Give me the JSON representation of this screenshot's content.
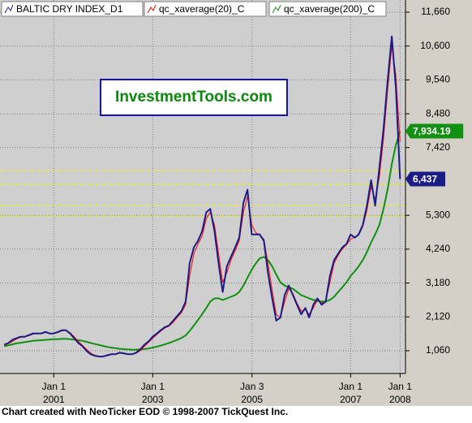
{
  "chart_data": {
    "type": "line",
    "legend": [
      "BALTIC DRY INDEX_D1",
      "qc_xaverage(20)_C",
      "qc_xaverage(200)_C"
    ],
    "watermark": "InvestmentTools.com",
    "footer": "Chart created with NeoTicker EOD © 1998-2007 TickQuest Inc.",
    "x": [
      "2000-01",
      "2000-02",
      "2000-03",
      "2000-04",
      "2000-05",
      "2000-06",
      "2000-07",
      "2000-08",
      "2000-09",
      "2000-10",
      "2000-11",
      "2000-12",
      "2001-01",
      "2001-02",
      "2001-03",
      "2001-04",
      "2001-05",
      "2001-06",
      "2001-07",
      "2001-08",
      "2001-09",
      "2001-10",
      "2001-11",
      "2001-12",
      "2002-01",
      "2002-02",
      "2002-03",
      "2002-04",
      "2002-05",
      "2002-06",
      "2002-07",
      "2002-08",
      "2002-09",
      "2002-10",
      "2002-11",
      "2002-12",
      "2003-01",
      "2003-02",
      "2003-03",
      "2003-04",
      "2003-05",
      "2003-06",
      "2003-07",
      "2003-08",
      "2003-09",
      "2003-10",
      "2003-11",
      "2003-12",
      "2004-01",
      "2004-02",
      "2004-03",
      "2004-04",
      "2004-05",
      "2004-06",
      "2004-07",
      "2004-08",
      "2004-09",
      "2004-10",
      "2004-11",
      "2004-12",
      "2005-01",
      "2005-02",
      "2005-03",
      "2005-04",
      "2005-05",
      "2005-06",
      "2005-07",
      "2005-08",
      "2005-09",
      "2005-10",
      "2005-11",
      "2005-12",
      "2006-01",
      "2006-02",
      "2006-03",
      "2006-04",
      "2006-05",
      "2006-06",
      "2006-07",
      "2006-08",
      "2006-09",
      "2006-10",
      "2006-11",
      "2006-12",
      "2007-01",
      "2007-02",
      "2007-03",
      "2007-04",
      "2007-05",
      "2007-06",
      "2007-07",
      "2007-08",
      "2007-09",
      "2007-10",
      "2007-11",
      "2007-12",
      "2008-01"
    ],
    "series": [
      {
        "name": "BALTIC DRY INDEX_D1",
        "color": "#1c1c86",
        "end_label": "6,437",
        "values": [
          1250,
          1300,
          1400,
          1450,
          1500,
          1500,
          1550,
          1600,
          1600,
          1600,
          1650,
          1600,
          1600,
          1650,
          1700,
          1700,
          1600,
          1450,
          1300,
          1200,
          1050,
          950,
          900,
          880,
          880,
          920,
          950,
          950,
          1000,
          980,
          950,
          950,
          1000,
          1100,
          1250,
          1350,
          1500,
          1600,
          1700,
          1800,
          1850,
          2000,
          2150,
          2300,
          2600,
          3800,
          4300,
          4500,
          4800,
          5400,
          5500,
          4800,
          3800,
          2900,
          3700,
          4000,
          4300,
          4600,
          5700,
          6100,
          4700,
          4700,
          4700,
          4500,
          3500,
          2700,
          2000,
          2100,
          2800,
          3100,
          2800,
          2500,
          2200,
          2400,
          2100,
          2500,
          2700,
          2500,
          2600,
          3400,
          3900,
          4100,
          4300,
          4400,
          4700,
          4600,
          4700,
          5000,
          5600,
          6400,
          5600,
          6800,
          8000,
          9500,
          10900,
          9300,
          6437
        ]
      },
      {
        "name": "qc_xaverage(20)_C",
        "color": "#ff0000",
        "values": [
          1230,
          1280,
          1350,
          1430,
          1480,
          1500,
          1530,
          1580,
          1600,
          1600,
          1630,
          1610,
          1600,
          1630,
          1680,
          1700,
          1630,
          1500,
          1350,
          1230,
          1100,
          980,
          920,
          890,
          880,
          900,
          940,
          950,
          980,
          980,
          960,
          950,
          980,
          1060,
          1200,
          1320,
          1450,
          1570,
          1670,
          1770,
          1830,
          1950,
          2100,
          2250,
          2500,
          3400,
          4100,
          4400,
          4650,
          5200,
          5400,
          5000,
          4100,
          3200,
          3500,
          3900,
          4200,
          4500,
          5400,
          5900,
          5000,
          4750,
          4700,
          4550,
          3800,
          2950,
          2200,
          2100,
          2600,
          3000,
          2850,
          2550,
          2300,
          2350,
          2200,
          2400,
          2650,
          2550,
          2600,
          3200,
          3800,
          4050,
          4250,
          4380,
          4550,
          4620,
          4680,
          4950,
          5450,
          6200,
          5800,
          6500,
          7700,
          9200,
          10600,
          9700,
          7600
        ]
      },
      {
        "name": "qc_xaverage(200)_C",
        "color": "#119011",
        "end_label": "7,934.19",
        "values": [
          1200,
          1230,
          1260,
          1290,
          1310,
          1330,
          1350,
          1370,
          1380,
          1390,
          1400,
          1410,
          1420,
          1420,
          1430,
          1430,
          1420,
          1410,
          1390,
          1370,
          1340,
          1300,
          1270,
          1240,
          1210,
          1180,
          1160,
          1140,
          1120,
          1110,
          1100,
          1090,
          1090,
          1100,
          1110,
          1130,
          1160,
          1190,
          1220,
          1260,
          1300,
          1350,
          1400,
          1460,
          1540,
          1680,
          1850,
          2020,
          2200,
          2400,
          2600,
          2700,
          2700,
          2650,
          2700,
          2750,
          2800,
          2900,
          3100,
          3350,
          3600,
          3800,
          3950,
          4000,
          3900,
          3700,
          3450,
          3200,
          3100,
          3050,
          3000,
          2900,
          2800,
          2750,
          2700,
          2650,
          2620,
          2600,
          2600,
          2650,
          2750,
          2900,
          3050,
          3200,
          3400,
          3550,
          3700,
          3900,
          4150,
          4450,
          4700,
          5000,
          5500,
          6100,
          6900,
          7500,
          7934.19
        ]
      }
    ],
    "xlim": [
      "1999-12-01",
      "2008-02-10"
    ],
    "xticks": [
      {
        "value": "2001-01-01",
        "label": [
          "Jan 1",
          "2001"
        ]
      },
      {
        "value": "2003-01-01",
        "label": [
          "Jan 1",
          "2003"
        ]
      },
      {
        "value": "2005-01-03",
        "label": [
          "Jan 3",
          "2005"
        ]
      },
      {
        "value": "2007-01-01",
        "label": [
          "Jan 1",
          "2007"
        ]
      },
      {
        "value": "2008-01-01",
        "label": [
          "Jan 1",
          "2008"
        ]
      }
    ],
    "ylim": [
      348,
      12041
    ],
    "yticks": [
      {
        "value": 1060,
        "label": "1,060"
      },
      {
        "value": 2120,
        "label": "2,120"
      },
      {
        "value": 3180,
        "label": "3,180"
      },
      {
        "value": 4240,
        "label": "4,240"
      },
      {
        "value": 5300,
        "label": "5,300"
      },
      {
        "value": 7420,
        "label": "7,420"
      },
      {
        "value": 8480,
        "label": "8,480"
      },
      {
        "value": 9540,
        "label": "9,540"
      },
      {
        "value": 10600,
        "label": "10,600"
      },
      {
        "value": 11660,
        "label": "11,660"
      }
    ],
    "hlines": [
      6700,
      6270,
      5610,
      5280
    ],
    "hline_color": "#f0f000",
    "grid": true
  }
}
